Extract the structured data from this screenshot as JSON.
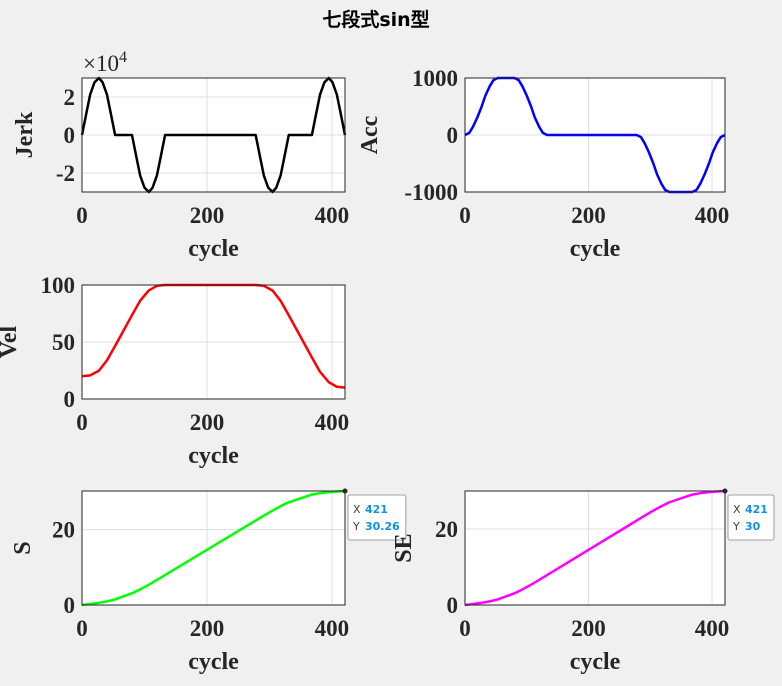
{
  "title": "七段式sin型",
  "chart_data": [
    {
      "type": "line",
      "ylabel": "Jerk",
      "xlabel": "cycle",
      "color": "#000000",
      "grid": true,
      "xlim": [
        0,
        421
      ],
      "xticks": [
        0,
        200,
        400
      ],
      "ylim": [
        -30000,
        30000
      ],
      "yticks": [
        {
          "value": -20000,
          "label": "-2"
        },
        0,
        {
          "value": 20000,
          "label": "2"
        }
      ],
      "y_exponent": {
        "base": "×10",
        "power": "4"
      },
      "x": [
        0,
        7,
        13,
        20,
        27,
        33,
        40,
        46,
        53,
        80,
        87,
        93,
        100,
        107,
        113,
        120,
        126,
        133,
        278,
        285,
        291,
        298,
        305,
        311,
        318,
        324,
        331,
        368,
        375,
        381,
        388,
        395,
        401,
        408,
        414,
        421
      ],
      "values": [
        0,
        11500,
        21200,
        27700,
        30000,
        27700,
        21200,
        11500,
        0,
        0,
        -11500,
        -21200,
        -27700,
        -30000,
        -27700,
        -21200,
        -11500,
        0,
        0,
        -11500,
        -21200,
        -27700,
        -30000,
        -27700,
        -21200,
        -11500,
        0,
        0,
        11500,
        21200,
        27700,
        30000,
        27700,
        21200,
        11500,
        0
      ]
    },
    {
      "type": "line",
      "ylabel": "Acc",
      "xlabel": "cycle",
      "color": "#0000ff",
      "grid": true,
      "xlim": [
        0,
        421
      ],
      "xticks": [
        0,
        200,
        400
      ],
      "ylim": [
        -1000,
        1000
      ],
      "yticks": [
        -1000,
        0,
        1000
      ],
      "x": [
        0,
        7,
        13,
        20,
        27,
        33,
        40,
        46,
        53,
        80,
        87,
        93,
        100,
        107,
        113,
        120,
        126,
        133,
        278,
        285,
        291,
        298,
        305,
        311,
        318,
        324,
        331,
        368,
        375,
        381,
        388,
        395,
        401,
        408,
        414,
        421
      ],
      "values": [
        0,
        38,
        146,
        309,
        500,
        691,
        854,
        962,
        1000,
        1000,
        962,
        854,
        691,
        500,
        309,
        146,
        38,
        0,
        0,
        -38,
        -146,
        -309,
        -500,
        -691,
        -854,
        -962,
        -1000,
        -1000,
        -962,
        -854,
        -691,
        -500,
        -309,
        -146,
        -38,
        0
      ]
    },
    {
      "type": "line",
      "ylabel": "Vel",
      "xlabel": "cycle",
      "color": "#ff0000",
      "grid": true,
      "xlim": [
        0,
        421
      ],
      "xticks": [
        0,
        200,
        400
      ],
      "ylim": [
        0,
        100
      ],
      "yticks": [
        0,
        50,
        100
      ],
      "x": [
        0,
        13,
        27,
        40,
        53,
        80,
        93,
        107,
        120,
        133,
        278,
        291,
        305,
        318,
        331,
        368,
        381,
        395,
        408,
        421
      ],
      "values": [
        20,
        20.7,
        24.8,
        33.9,
        46.5,
        73.5,
        86.1,
        95.2,
        99.3,
        100,
        100,
        99.3,
        95.2,
        86.1,
        73.5,
        36.5,
        23.9,
        14.8,
        10.7,
        10
      ]
    },
    {
      "type": "line",
      "ylabel": "S",
      "xlabel": "cycle",
      "color": "#00ff00",
      "grid": true,
      "xlim": [
        0,
        421
      ],
      "xticks": [
        0,
        200,
        400
      ],
      "ylim": [
        0,
        30.26
      ],
      "yticks": [
        0,
        20
      ],
      "x": [
        0,
        13,
        27,
        40,
        53,
        80,
        93,
        107,
        120,
        133,
        278,
        291,
        305,
        318,
        331,
        368,
        381,
        395,
        408,
        421
      ],
      "values": [
        0,
        0.26,
        0.58,
        0.96,
        1.48,
        3.1,
        4.13,
        5.4,
        6.66,
        7.95,
        22.41,
        23.7,
        25.06,
        26.23,
        27.27,
        29.3,
        29.69,
        29.96,
        30.12,
        30.26
      ],
      "datatip": {
        "x_label": "X",
        "x": 421,
        "y_label": "Y",
        "y": 30.26
      }
    },
    {
      "type": "line",
      "ylabel": "SE",
      "xlabel": "cycle",
      "color": "#ff00ff",
      "grid": true,
      "xlim": [
        0,
        421
      ],
      "xticks": [
        0,
        200,
        400
      ],
      "ylim": [
        0,
        30
      ],
      "yticks": [
        0,
        20
      ],
      "x": [
        0,
        13,
        27,
        40,
        53,
        80,
        93,
        107,
        120,
        133,
        278,
        291,
        305,
        318,
        331,
        368,
        381,
        395,
        408,
        421
      ],
      "values": [
        0,
        0.26,
        0.58,
        0.95,
        1.47,
        3.07,
        4.09,
        5.35,
        6.6,
        7.88,
        22.22,
        23.5,
        24.84,
        26,
        27.04,
        29.05,
        29.43,
        29.7,
        29.86,
        30
      ],
      "datatip": {
        "x_label": "X",
        "x": 421,
        "y_label": "Y",
        "y": 30
      }
    }
  ]
}
